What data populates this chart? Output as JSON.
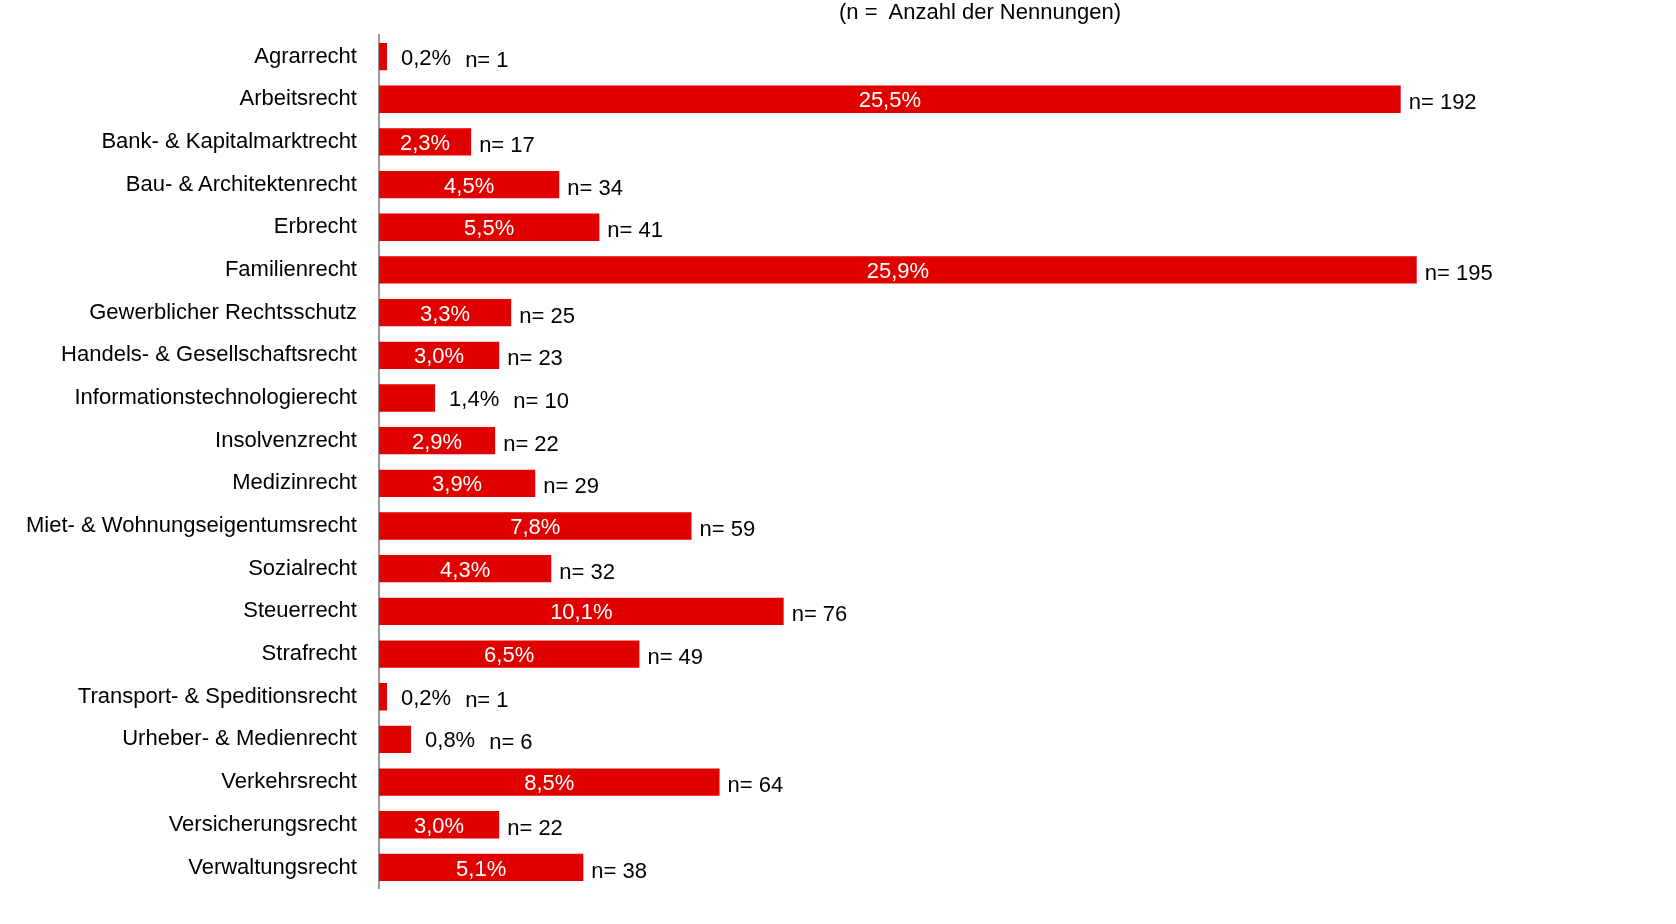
{
  "chart_data": {
    "type": "bar",
    "orientation": "horizontal",
    "subtitle": "(n =  Anzahl der Nennungen)",
    "categories": [
      "Agrarrecht",
      "Arbeitsrecht",
      "Bank- & Kapitalmarktrecht",
      "Bau- & Architektenrecht",
      "Erbrecht",
      "Familienrecht",
      "Gewerblicher Rechtsschutz",
      "Handels- & Gesellschaftsrecht",
      "Informationstechnologierecht",
      "Insolvenzrecht",
      "Medizinrecht",
      "Miet- & Wohnungseigentumsrecht",
      "Sozialrecht",
      "Steuerrecht",
      "Strafrecht",
      "Transport- & Speditionsrecht",
      "Urheber- & Medienrecht",
      "Verkehrsrecht",
      "Versicherungsrecht",
      "Verwaltungsrecht"
    ],
    "values": [
      0.2,
      25.5,
      2.3,
      4.5,
      5.5,
      25.9,
      3.3,
      3.0,
      1.4,
      2.9,
      3.9,
      7.8,
      4.3,
      10.1,
      6.5,
      0.2,
      0.8,
      8.5,
      3.0,
      5.1
    ],
    "value_labels": [
      "0,2%",
      "25,5%",
      "2,3%",
      "4,5%",
      "5,5%",
      "25,9%",
      "3,3%",
      "3,0%",
      "1,4%",
      "2,9%",
      "3,9%",
      "7,8%",
      "4,3%",
      "10,1%",
      "6,5%",
      "0,2%",
      "0,8%",
      "8,5%",
      "3,0%",
      "5,1%"
    ],
    "color": "#e00000",
    "tick_labels": "y",
    "grid": false,
    "legend": false,
    "annotations": [
      "n= 1",
      "n= 192",
      "n= 17",
      "n= 34",
      "n= 41",
      "n= 195",
      "n= 25",
      "n= 23",
      "n= 10",
      "n= 22",
      "n= 29",
      "n= 59",
      "n= 32",
      "n= 76",
      "n= 49",
      "n= 1",
      "n= 6",
      "n= 64",
      "n= 22",
      "n= 38"
    ]
  }
}
